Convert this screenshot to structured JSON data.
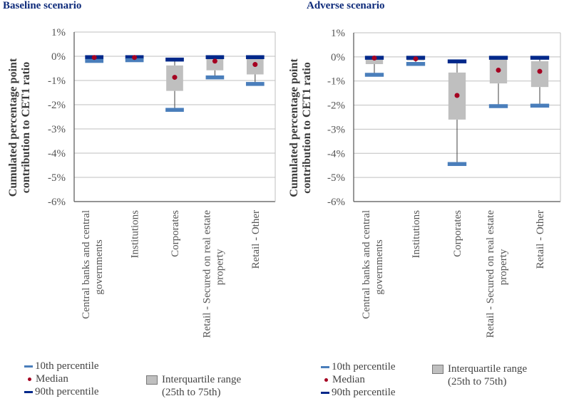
{
  "colors": {
    "p10": "#4a7ebb",
    "p90": "#00288a",
    "median": "#a50021",
    "iqr": "#bfbfbf",
    "whisker": "#404040",
    "grid": "#bfbfbf",
    "title": "#0d2a7a"
  },
  "legend": {
    "p10": "10th percentile",
    "median": "Median",
    "p90": "90th percentile",
    "iqr_line1": "Interquartile range",
    "iqr_line2": "(25th to 75th)"
  },
  "chart_data": [
    {
      "type": "box",
      "title": "Baseline scenario",
      "ylabel_line1": "Cumulated percentage point",
      "ylabel_line2": "contribution to CET1 ratio",
      "ylim": [
        -6,
        1
      ],
      "yticks": [
        1,
        0,
        -1,
        -2,
        -3,
        -4,
        -5,
        -6
      ],
      "ytick_labels": [
        "1%",
        "0%",
        "-1%",
        "-2%",
        "-3%",
        "-4%",
        "-5%",
        "-6%"
      ],
      "grid": true,
      "categories": [
        {
          "line1": "Central banks and central",
          "line2": "governments"
        },
        {
          "line1": "Institutions",
          "line2": ""
        },
        {
          "line1": "Corporates",
          "line2": ""
        },
        {
          "line1": "Retail - Secured on real estate",
          "line2": "property"
        },
        {
          "line1": "Retail - Other",
          "line2": ""
        }
      ],
      "series": {
        "p90": [
          0.0,
          0.0,
          -0.1,
          0.0,
          0.0
        ],
        "q75": [
          -0.05,
          -0.03,
          -0.38,
          -0.05,
          -0.08
        ],
        "median": [
          -0.05,
          -0.05,
          -0.87,
          -0.2,
          -0.34
        ],
        "q25": [
          -0.12,
          -0.1,
          -1.43,
          -0.58,
          -0.75
        ],
        "p10": [
          -0.2,
          -0.17,
          -2.22,
          -0.88,
          -1.15
        ]
      }
    },
    {
      "type": "box",
      "title": "Adverse scenario",
      "ylabel_line1": "Cumulated percentage point",
      "ylabel_line2": "contribution to CET1 ratio",
      "ylim": [
        -6,
        1
      ],
      "yticks": [
        1,
        0,
        -1,
        -2,
        -3,
        -4,
        -5,
        -6
      ],
      "ytick_labels": [
        "1%",
        "0%",
        "-1%",
        "-2%",
        "-3%",
        "-4%",
        "-5%",
        "-6%"
      ],
      "grid": true,
      "categories": [
        {
          "line1": "Central banks and central",
          "line2": "governments"
        },
        {
          "line1": "Institutions",
          "line2": ""
        },
        {
          "line1": "Corporates",
          "line2": ""
        },
        {
          "line1": "Retail - Secured on real estate",
          "line2": "property"
        },
        {
          "line1": "Retail - Other",
          "line2": ""
        }
      ],
      "series": {
        "p90": [
          0.0,
          0.0,
          -0.15,
          0.0,
          0.0
        ],
        "q75": [
          -0.05,
          -0.05,
          -0.65,
          -0.08,
          -0.18
        ],
        "median": [
          -0.05,
          -0.08,
          -1.6,
          -0.55,
          -0.6
        ],
        "q25": [
          -0.3,
          -0.15,
          -2.6,
          -1.1,
          -1.25
        ],
        "p10": [
          -0.75,
          -0.3,
          -4.45,
          -2.05,
          -2.03
        ]
      }
    }
  ]
}
